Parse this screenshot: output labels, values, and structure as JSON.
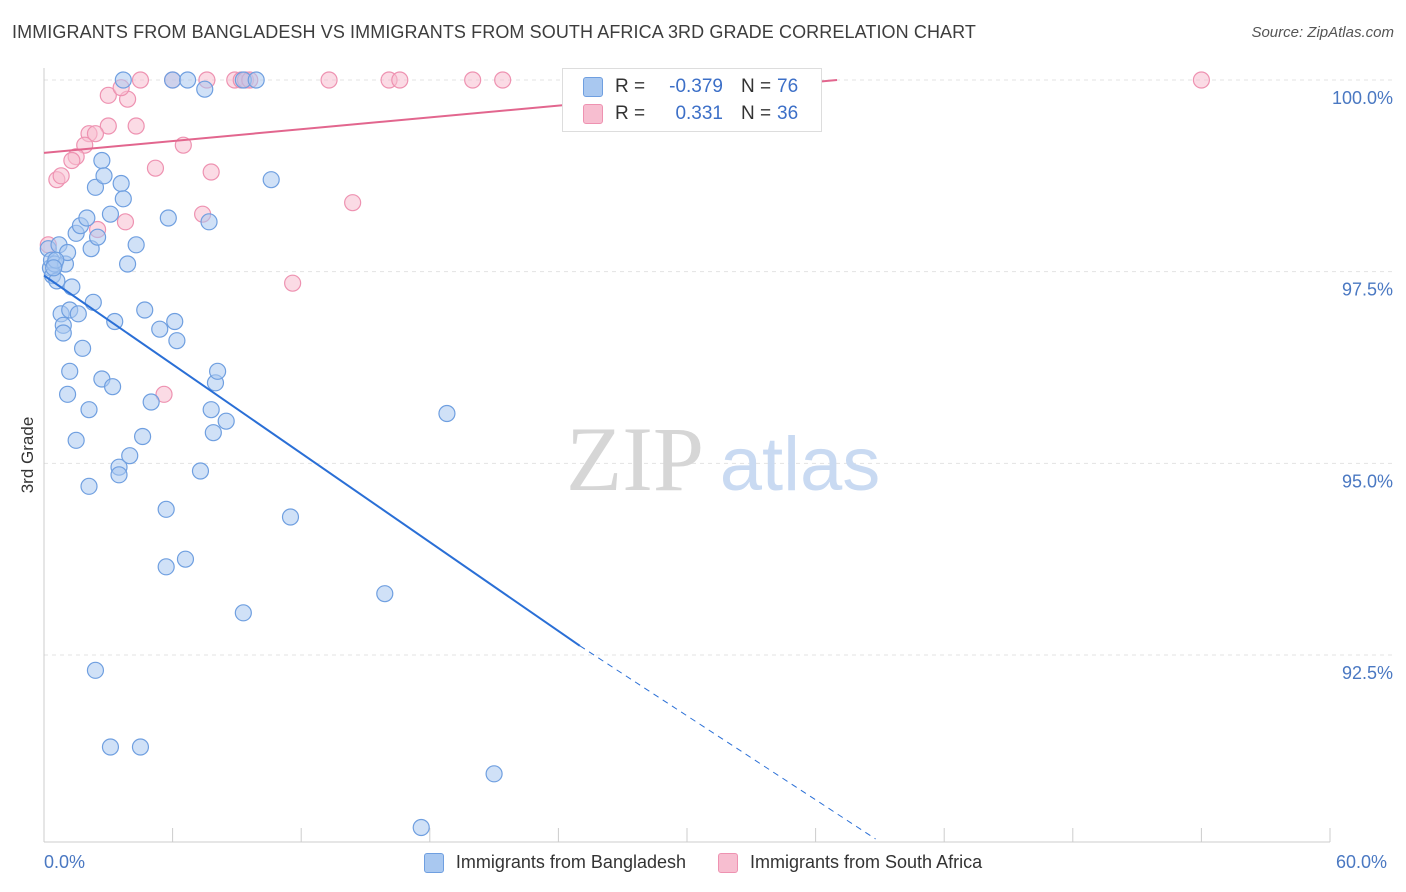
{
  "title": "IMMIGRANTS FROM BANGLADESH VS IMMIGRANTS FROM SOUTH AFRICA 3RD GRADE CORRELATION CHART",
  "source": "Source: ZipAtlas.com",
  "watermark": {
    "zip": "ZIP",
    "atlas": "atlas"
  },
  "colors": {
    "blue_fill": "#a9c8f0",
    "blue_stroke": "#6f9fe0",
    "blue_line": "#2a6fd6",
    "pink_fill": "#f7bed0",
    "pink_stroke": "#ee92b1",
    "pink_line": "#e2668e",
    "tick_text": "#4a78c2",
    "grid": "#e3e3e3"
  },
  "legend": {
    "rows": [
      {
        "series": "Immigrants from Bangladesh",
        "r_label": "R =",
        "r_value": "-0.379",
        "n_label": "N =",
        "n_value": "76"
      },
      {
        "series": "Immigrants from South Africa",
        "r_label": "R =",
        "r_value": "0.331",
        "n_label": "N =",
        "n_value": "36"
      }
    ]
  },
  "chart_data": {
    "type": "scatter",
    "title": "IMMIGRANTS FROM BANGLADESH VS IMMIGRANTS FROM SOUTH AFRICA 3RD GRADE CORRELATION CHART",
    "xlabel": "",
    "ylabel": "3rd Grade",
    "xlim": [
      0,
      60
    ],
    "ylim": [
      90.1,
      100.5
    ],
    "x_tick_labels": [
      "0.0%",
      "60.0%"
    ],
    "y_ticks": [
      {
        "value": 92.5,
        "label": "92.5%"
      },
      {
        "value": 95.0,
        "label": "95.0%"
      },
      {
        "value": 97.5,
        "label": "97.5%"
      },
      {
        "value": 100.0,
        "label": "100.0%"
      }
    ],
    "grid": true,
    "legend_position": "bottom",
    "series": [
      {
        "name": "Immigrants from Bangladesh",
        "color": "blue",
        "points": [
          [
            3.7,
            100.0
          ],
          [
            6.0,
            100.0
          ],
          [
            6.7,
            100.0
          ],
          [
            7.5,
            99.88
          ],
          [
            9.3,
            100.0
          ],
          [
            9.9,
            100.0
          ],
          [
            0.2,
            97.8
          ],
          [
            0.3,
            97.55
          ],
          [
            0.35,
            97.65
          ],
          [
            0.4,
            97.45
          ],
          [
            0.5,
            97.6
          ],
          [
            0.6,
            97.38
          ],
          [
            0.7,
            97.85
          ],
          [
            1.0,
            97.6
          ],
          [
            1.1,
            97.75
          ],
          [
            1.3,
            97.3
          ],
          [
            0.8,
            96.95
          ],
          [
            0.9,
            96.8
          ],
          [
            0.9,
            96.7
          ],
          [
            1.2,
            97.0
          ],
          [
            1.5,
            98.0
          ],
          [
            1.7,
            98.1
          ],
          [
            1.8,
            96.5
          ],
          [
            2.0,
            98.2
          ],
          [
            2.2,
            97.8
          ],
          [
            2.3,
            97.1
          ],
          [
            2.4,
            98.6
          ],
          [
            2.7,
            98.95
          ],
          [
            2.8,
            98.75
          ],
          [
            3.1,
            98.25
          ],
          [
            3.6,
            98.65
          ],
          [
            3.7,
            98.45
          ],
          [
            3.9,
            97.6
          ],
          [
            4.3,
            97.85
          ],
          [
            1.2,
            96.2
          ],
          [
            1.1,
            95.9
          ],
          [
            1.5,
            95.3
          ],
          [
            2.1,
            95.7
          ],
          [
            2.7,
            96.1
          ],
          [
            3.2,
            96.0
          ],
          [
            3.3,
            96.85
          ],
          [
            3.5,
            94.95
          ],
          [
            3.5,
            94.85
          ],
          [
            4.0,
            95.1
          ],
          [
            4.6,
            95.35
          ],
          [
            4.7,
            97.0
          ],
          [
            5.0,
            95.8
          ],
          [
            5.4,
            96.75
          ],
          [
            5.8,
            98.2
          ],
          [
            6.1,
            96.85
          ],
          [
            6.2,
            96.6
          ],
          [
            7.3,
            94.9
          ],
          [
            7.8,
            95.7
          ],
          [
            7.9,
            95.4
          ],
          [
            8.0,
            96.05
          ],
          [
            8.1,
            96.2
          ],
          [
            8.5,
            95.55
          ],
          [
            7.7,
            98.15
          ],
          [
            10.6,
            98.7
          ],
          [
            11.5,
            94.3
          ],
          [
            2.1,
            94.7
          ],
          [
            5.7,
            94.4
          ],
          [
            5.7,
            93.65
          ],
          [
            6.6,
            93.75
          ],
          [
            9.3,
            93.05
          ],
          [
            15.9,
            93.3
          ],
          [
            18.8,
            95.65
          ],
          [
            2.4,
            92.3
          ],
          [
            3.1,
            91.3
          ],
          [
            4.5,
            91.3
          ],
          [
            21.0,
            90.95
          ],
          [
            17.6,
            90.25
          ],
          [
            0.55,
            97.65
          ],
          [
            0.45,
            97.55
          ],
          [
            2.5,
            97.95
          ],
          [
            1.6,
            96.95
          ]
        ]
      },
      {
        "name": "Immigrants from South Africa",
        "color": "pink",
        "points": [
          [
            4.5,
            100.0
          ],
          [
            6.0,
            100.0
          ],
          [
            7.6,
            100.0
          ],
          [
            8.9,
            100.0
          ],
          [
            9.2,
            100.0
          ],
          [
            9.4,
            100.0
          ],
          [
            13.3,
            100.0
          ],
          [
            16.1,
            100.0
          ],
          [
            16.6,
            100.0
          ],
          [
            20.0,
            100.0
          ],
          [
            21.4,
            100.0
          ],
          [
            32.1,
            100.0
          ],
          [
            54.0,
            100.0
          ],
          [
            3.0,
            99.8
          ],
          [
            3.9,
            99.75
          ],
          [
            3.6,
            99.9
          ],
          [
            4.3,
            99.4
          ],
          [
            3.0,
            99.4
          ],
          [
            2.1,
            99.3
          ],
          [
            2.4,
            99.3
          ],
          [
            1.9,
            99.15
          ],
          [
            6.5,
            99.15
          ],
          [
            1.5,
            99.0
          ],
          [
            1.3,
            98.95
          ],
          [
            0.6,
            98.7
          ],
          [
            0.8,
            98.75
          ],
          [
            5.2,
            98.85
          ],
          [
            7.8,
            98.8
          ],
          [
            14.4,
            98.4
          ],
          [
            7.4,
            98.25
          ],
          [
            3.8,
            98.15
          ],
          [
            2.5,
            98.05
          ],
          [
            0.2,
            97.85
          ],
          [
            11.6,
            97.35
          ],
          [
            5.6,
            95.9
          ],
          [
            9.6,
            100.0
          ]
        ]
      }
    ],
    "trend_lines": [
      {
        "series": "Immigrants from Bangladesh",
        "x0": 0,
        "y0": 97.45,
        "x1": 25.0,
        "y1": 92.62,
        "dashed_to": [
          38.8,
          90.1
        ]
      },
      {
        "series": "Immigrants from South Africa",
        "x0": 0,
        "y0": 99.05,
        "x1": 37.0,
        "y1": 100.0
      }
    ]
  }
}
